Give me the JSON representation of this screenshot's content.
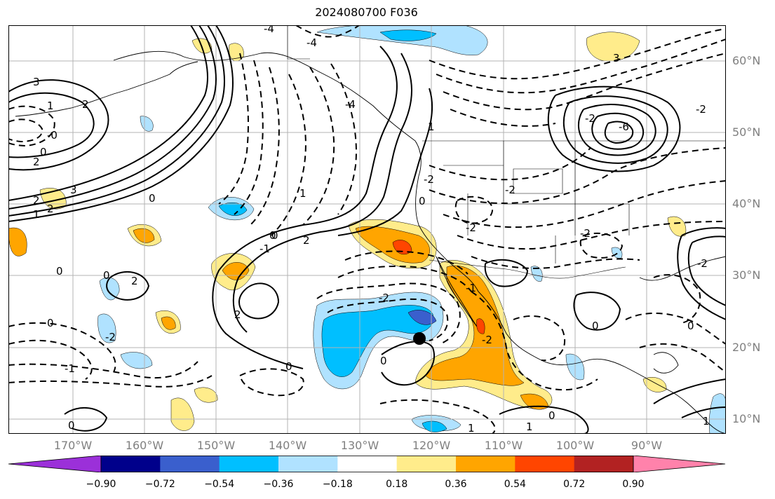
{
  "title": "2024080700 F036",
  "map": {
    "lon_range": [
      -177,
      -77
    ],
    "lat_range": [
      8,
      65
    ],
    "lat_labels": [
      "60°N",
      "50°N",
      "40°N",
      "30°N",
      "20°N",
      "10°N"
    ],
    "lon_labels": [
      "170°W",
      "160°W",
      "150°W",
      "140°W",
      "130°W",
      "120°W",
      "110°W",
      "100°W",
      "90°W"
    ],
    "marker": {
      "lon": -122.6,
      "lat": 21.0
    },
    "contour_labels": [
      "-4",
      "-4",
      "3",
      "1",
      "2",
      "-0",
      "0",
      "2",
      "2",
      "3",
      "1",
      "2",
      "0",
      "1",
      "0",
      "-1",
      "0",
      "-4",
      "-2",
      "-2",
      "3",
      "-6",
      "-2",
      "-2",
      "-2",
      "0",
      "0",
      "1",
      "0",
      "0",
      "2",
      "-1",
      "2",
      "2",
      "-2",
      "-2",
      "0",
      "0",
      "-1",
      "-2",
      "0",
      "1",
      "0",
      "0",
      "1",
      "-2",
      "-2",
      "0",
      "1"
    ]
  },
  "colorbar": {
    "colors": [
      "#9b30d9",
      "#00008b",
      "#3a5fcd",
      "#00bfff",
      "#b0e2ff",
      "#ffffff",
      "#ffec8b",
      "#ffa500",
      "#ff4500",
      "#b22222",
      "#ff82ab"
    ],
    "tick_labels": [
      "−0.90",
      "−0.72",
      "−0.54",
      "−0.36",
      "−0.18",
      "0.18",
      "0.36",
      "0.54",
      "0.72",
      "0.90"
    ]
  }
}
